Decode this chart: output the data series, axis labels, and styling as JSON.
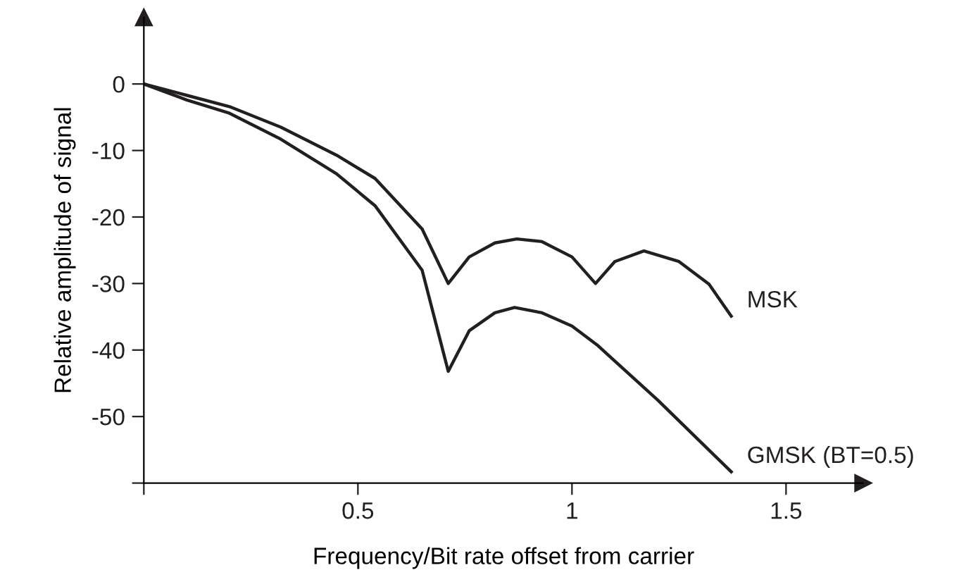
{
  "chart_data": {
    "type": "line",
    "xlabel": "Frequency/Bit rate offset from carrier",
    "ylabel": "Relative amplitude of signal",
    "xlim": [
      0,
      1.68
    ],
    "ylim": [
      -60,
      10
    ],
    "xticks": [
      {
        "value": 0,
        "label": null
      },
      0.5,
      1,
      1.5
    ],
    "yticks": [
      {
        "value": -60,
        "label": null
      },
      {
        "value": -50,
        "label": "-50"
      },
      {
        "value": -40,
        "label": "-40"
      },
      {
        "value": -30,
        "label": "-30"
      },
      {
        "value": -20,
        "label": "-20"
      },
      {
        "value": -10,
        "label": "-10"
      },
      0
    ],
    "grid": false,
    "legend": false,
    "marker": "none",
    "line_style": "solid",
    "series": [
      {
        "name": "MSK",
        "color": "#231f20",
        "x": [
          0,
          0.1,
          0.2,
          0.32,
          0.45,
          0.54,
          0.65,
          0.711,
          0.76,
          0.82,
          0.871,
          0.93,
          1.0,
          1.055,
          1.1,
          1.168,
          1.25,
          1.32,
          1.372
        ],
        "values": [
          0,
          -1.7,
          -3.4,
          -6.5,
          -10.7,
          -14.2,
          -21.8,
          -30,
          -26,
          -23.9,
          -23.3,
          -23.7,
          -26,
          -30,
          -26.7,
          -25.1,
          -26.7,
          -30.1,
          -34.9
        ]
      },
      {
        "name": "GMSK (BT=0.5)",
        "color": "#231f20",
        "x": [
          0,
          0.1,
          0.2,
          0.32,
          0.45,
          0.54,
          0.65,
          0.711,
          0.76,
          0.82,
          0.866,
          0.93,
          1.0,
          1.058,
          1.2,
          1.372
        ],
        "values": [
          0,
          -2.4,
          -4.4,
          -8.3,
          -13.5,
          -18.3,
          -28,
          -43.2,
          -37.1,
          -34.4,
          -33.6,
          -34.4,
          -36.4,
          -39.2,
          -47.5,
          -58.3
        ]
      }
    ]
  }
}
